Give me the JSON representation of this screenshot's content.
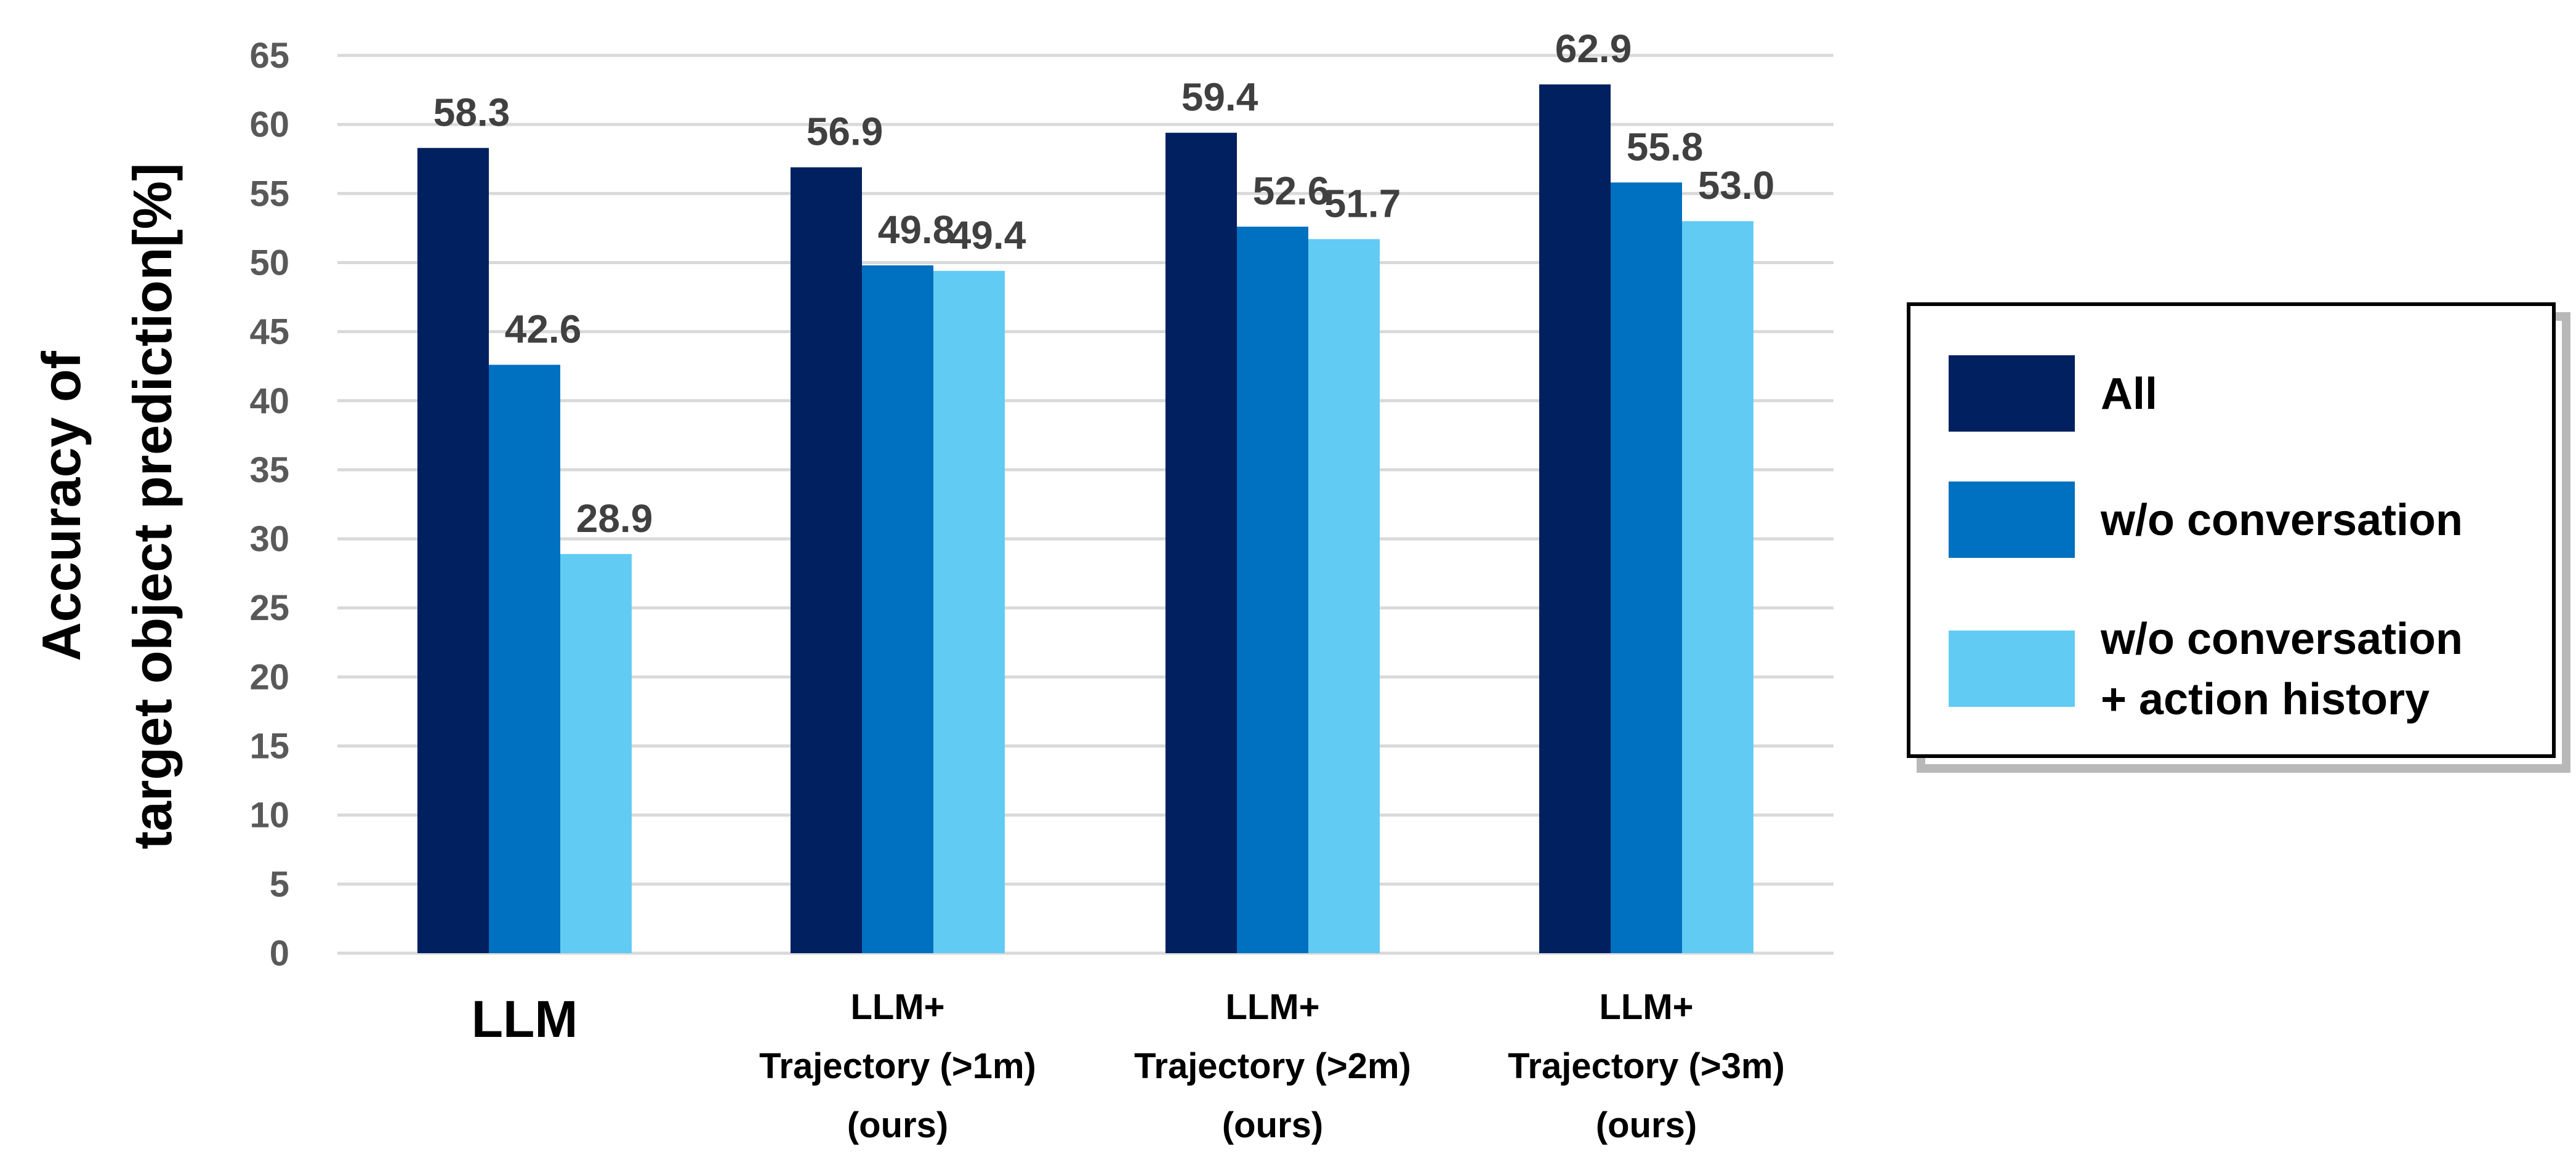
{
  "chart_data": {
    "type": "bar",
    "ylabel_lines": [
      "Accuracy of",
      "target object prediction[%]"
    ],
    "ylim": [
      0,
      65
    ],
    "yticks": [
      0,
      5,
      10,
      15,
      20,
      25,
      30,
      35,
      40,
      45,
      50,
      55,
      60,
      65
    ],
    "grid": true,
    "legend_position": "right",
    "categories": [
      [
        "LLM"
      ],
      [
        "LLM+",
        "Trajectory (>1m)",
        "(ours)"
      ],
      [
        "LLM+",
        "Trajectory (>2m)",
        "(ours)"
      ],
      [
        "LLM+",
        "Trajectory (>3m)",
        "(ours)"
      ]
    ],
    "series": [
      {
        "name": "All",
        "color": "#002060",
        "values": [
          58.3,
          56.9,
          59.4,
          62.9
        ],
        "labels": [
          "58.3",
          "56.9",
          "59.4",
          "62.9"
        ]
      },
      {
        "name": "w/o conversation",
        "color": "#0070C0",
        "values": [
          42.6,
          49.8,
          52.6,
          55.8
        ],
        "labels": [
          "42.6",
          "49.8",
          "52.6",
          "55.8"
        ]
      },
      {
        "name": "w/o conversation\n+ action history",
        "color": "#61CBF4",
        "values": [
          28.9,
          49.4,
          51.7,
          53.0
        ],
        "labels": [
          "28.9",
          "49.4",
          "51.7",
          "53.0"
        ]
      }
    ]
  }
}
